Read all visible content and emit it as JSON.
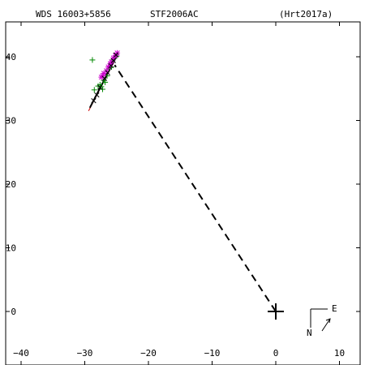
{
  "header": {
    "left": "WDS 16003+5856",
    "center": "STF2006AC",
    "right": "(Hrt2017a)"
  },
  "compass": {
    "north": "N",
    "east": "E"
  },
  "chart_data": {
    "type": "scatter",
    "xlim": [
      -44,
      14
    ],
    "ylim": [
      -8,
      44
    ],
    "x_ticks": [
      -40,
      -30,
      -20,
      -10,
      0,
      10
    ],
    "y_ticks": [
      0,
      10,
      20,
      30,
      40
    ],
    "x_tick_labels": [
      "−40",
      "−30",
      "−20",
      "−10",
      "0",
      "10"
    ],
    "y_tick_labels": [
      "0",
      "10",
      "20",
      "30",
      "40"
    ],
    "grid": false,
    "primary": {
      "x": 0,
      "y": 0,
      "marker": "cross"
    },
    "connector": {
      "from": [
        0,
        0
      ],
      "to": [
        -25.3,
        38.7
      ],
      "style": "dashed"
    },
    "fit_line": {
      "from": [
        -29.2,
        32.0
      ],
      "to": [
        -24.8,
        40.5
      ],
      "color": "#000000"
    },
    "trend_line": {
      "from": [
        -29.4,
        31.5
      ],
      "to": [
        -25.4,
        39.2
      ],
      "color": "#cc0000"
    },
    "series": [
      {
        "marker": "plus",
        "color": "#008800",
        "points": [
          [
            -28.8,
            39.5
          ],
          [
            -28.5,
            34.8
          ],
          [
            -27.9,
            35.4
          ],
          [
            -27.6,
            35.6
          ],
          [
            -27.0,
            36.3
          ],
          [
            -27.2,
            34.9
          ],
          [
            -26.5,
            37.0
          ],
          [
            -26.2,
            38.1
          ],
          [
            -25.6,
            39.5
          ],
          [
            -25.0,
            40.1
          ],
          [
            -25.8,
            38.4
          ],
          [
            -26.8,
            36.0
          ],
          [
            -27.4,
            35.3
          ]
        ]
      },
      {
        "marker": "star",
        "color": "#cc00cc",
        "points": [
          [
            -27.4,
            36.8
          ],
          [
            -27.0,
            37.4
          ],
          [
            -26.6,
            37.8
          ],
          [
            -26.0,
            38.9
          ],
          [
            -25.5,
            39.8
          ],
          [
            -25.2,
            40.2
          ],
          [
            -24.9,
            40.6
          ],
          [
            -26.3,
            38.4
          ],
          [
            -27.2,
            37.0
          ],
          [
            -25.8,
            39.2
          ]
        ]
      },
      {
        "marker": "x",
        "color": "#000000",
        "points": [
          [
            -28.1,
            34.0
          ],
          [
            -27.6,
            35.2
          ],
          [
            -26.9,
            36.6
          ],
          [
            -26.4,
            37.5
          ],
          [
            -25.9,
            38.6
          ],
          [
            -25.5,
            39.4
          ],
          [
            -28.6,
            33.1
          ],
          [
            -25.1,
            40.3
          ]
        ]
      }
    ]
  }
}
